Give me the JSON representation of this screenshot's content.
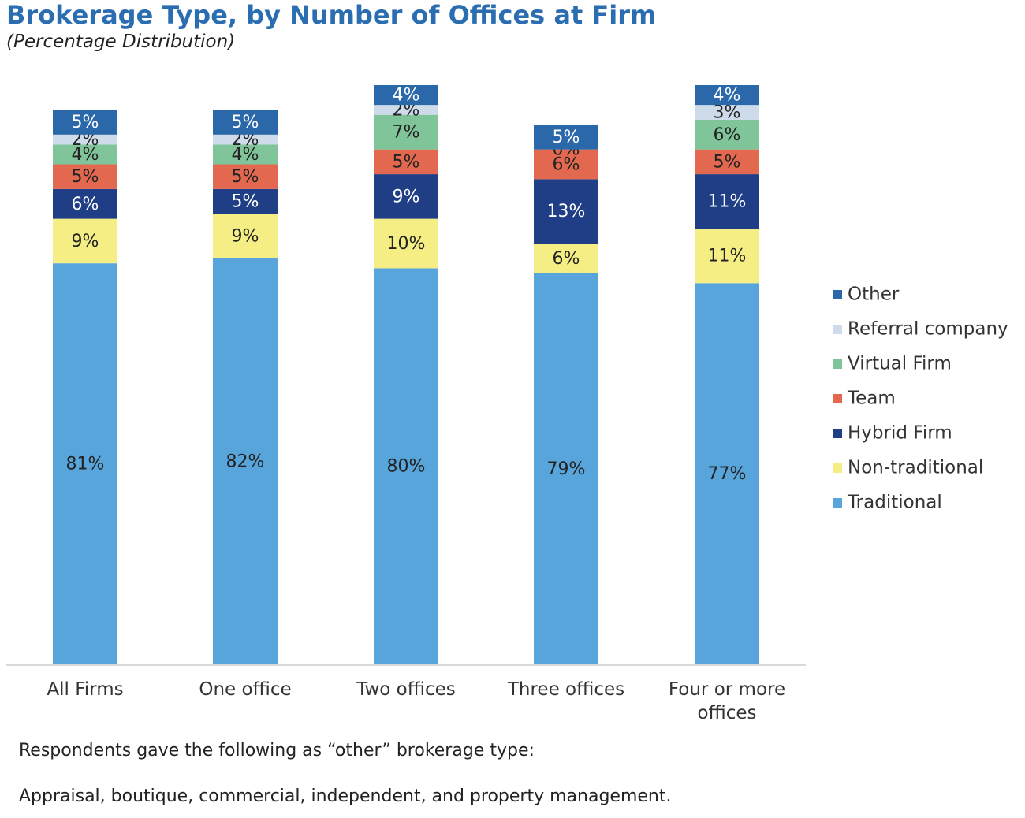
{
  "chart_data": {
    "type": "stacked-bar",
    "title": "Brokerage Type, by Number of Offices at Firm",
    "subtitle": "(Percentage Distribution)",
    "categories": [
      "All Firms",
      "One office",
      "Two offices",
      "Three offices",
      "Four or more offices"
    ],
    "ylim": [
      0,
      117
    ],
    "series": [
      {
        "name": "Traditional",
        "color": "#58a5db",
        "values": [
          81,
          82,
          80,
          79,
          77
        ],
        "value_labels": [
          "81%",
          "82%",
          "80%",
          "79%",
          "77%"
        ]
      },
      {
        "name": "Non-traditional",
        "color": "#f5ee84",
        "values": [
          9,
          9,
          10,
          6,
          11
        ],
        "value_labels": [
          "9%",
          "9%",
          "10%",
          "6%",
          "11%"
        ]
      },
      {
        "name": "Hybrid Firm",
        "color": "#1f3e85",
        "values": [
          6,
          5,
          9,
          13,
          11
        ],
        "value_labels": [
          "6%",
          "5%",
          "9%",
          "13%",
          "11%"
        ]
      },
      {
        "name": "Team",
        "color": "#e2694f",
        "values": [
          5,
          5,
          5,
          6,
          5
        ],
        "value_labels": [
          "5%",
          "5%",
          "5%",
          "6%",
          "5%"
        ]
      },
      {
        "name": "Virtual Firm",
        "color": "#80c49a",
        "values": [
          4,
          4,
          7,
          null,
          6
        ],
        "value_labels": [
          "4%",
          "4%",
          "7%",
          null,
          "6%"
        ]
      },
      {
        "name": "Referral company",
        "color": "#cddbea",
        "values": [
          2,
          2,
          2,
          0,
          3
        ],
        "value_labels": [
          "2%",
          "2%",
          "2%",
          "0%",
          "3%"
        ]
      },
      {
        "name": "Other",
        "color": "#2b68aa",
        "values": [
          5,
          5,
          4,
          5,
          4
        ],
        "value_labels": [
          "5%",
          "5%",
          "4%",
          "5%",
          "4%"
        ]
      }
    ],
    "notes": [
      "Respondents gave the following as “other” brokerage type:",
      "Appraisal, boutique, commercial, independent, and property management."
    ]
  }
}
